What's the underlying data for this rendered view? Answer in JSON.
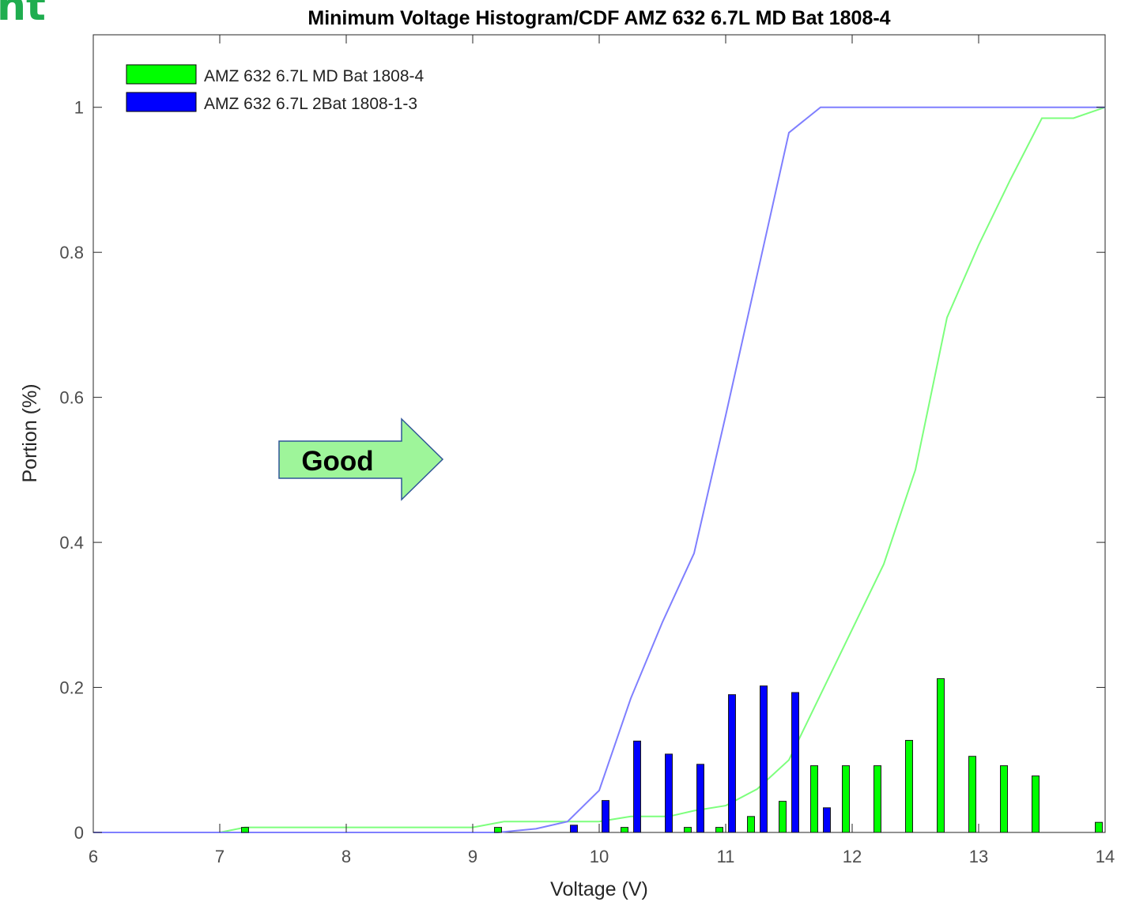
{
  "corner_text": "nt",
  "annotation": {
    "label": "Good",
    "fill": "#9ef59a",
    "stroke": "#2f5597"
  },
  "chart_data": {
    "type": "bar",
    "title": "Minimum Voltage Histogram/CDF AMZ 632 6.7L MD Bat 1808-4",
    "xlabel": "Voltage (V)",
    "ylabel": "Portion (%)",
    "xlim": [
      6,
      14
    ],
    "ylim": [
      0,
      1.1
    ],
    "xticks": [
      6,
      7,
      8,
      9,
      10,
      11,
      12,
      13,
      14
    ],
    "yticks": [
      0,
      0.2,
      0.4,
      0.6,
      0.8,
      1
    ],
    "ytick_labels": [
      "0",
      "0.2",
      "0.4",
      "0.6",
      "0.8",
      "1"
    ],
    "grid": false,
    "legend_position": "top-left",
    "series": [
      {
        "name": "AMZ 632 6.7L MD Bat 1808-4",
        "color": "#00ff00",
        "bars": [
          [
            7.2,
            0.007
          ],
          [
            9.2,
            0.007
          ],
          [
            10.2,
            0.007
          ],
          [
            10.7,
            0.007
          ],
          [
            10.95,
            0.007
          ],
          [
            11.2,
            0.022
          ],
          [
            11.45,
            0.043
          ],
          [
            11.7,
            0.092
          ],
          [
            11.95,
            0.092
          ],
          [
            12.2,
            0.092
          ],
          [
            12.45,
            0.127
          ],
          [
            12.7,
            0.212
          ],
          [
            12.95,
            0.105
          ],
          [
            13.2,
            0.092
          ],
          [
            13.45,
            0.078
          ],
          [
            13.95,
            0.014
          ]
        ],
        "cdf_color": "#7dff7d",
        "cdf": [
          [
            6.0,
            0.0
          ],
          [
            7.0,
            0.0
          ],
          [
            7.2,
            0.007
          ],
          [
            9.0,
            0.007
          ],
          [
            9.25,
            0.015
          ],
          [
            10.0,
            0.015
          ],
          [
            10.25,
            0.022
          ],
          [
            10.55,
            0.022
          ],
          [
            10.75,
            0.03
          ],
          [
            11.0,
            0.037
          ],
          [
            11.25,
            0.06
          ],
          [
            11.5,
            0.1
          ],
          [
            11.75,
            0.19
          ],
          [
            12.0,
            0.28
          ],
          [
            12.25,
            0.37
          ],
          [
            12.5,
            0.5
          ],
          [
            12.75,
            0.71
          ],
          [
            13.0,
            0.81
          ],
          [
            13.25,
            0.9
          ],
          [
            13.5,
            0.985
          ],
          [
            13.75,
            0.985
          ],
          [
            14.0,
            1.0
          ]
        ]
      },
      {
        "name": "AMZ 632 6.7L 2Bat 1808-1-3",
        "color": "#0000ff",
        "bars": [
          [
            9.8,
            0.01
          ],
          [
            10.05,
            0.044
          ],
          [
            10.3,
            0.126
          ],
          [
            10.55,
            0.108
          ],
          [
            10.8,
            0.094
          ],
          [
            11.05,
            0.19
          ],
          [
            11.3,
            0.202
          ],
          [
            11.55,
            0.193
          ],
          [
            11.8,
            0.034
          ]
        ],
        "cdf_color": "#7f7fff",
        "cdf": [
          [
            6.0,
            0.0
          ],
          [
            9.2,
            0.0
          ],
          [
            9.5,
            0.005
          ],
          [
            9.75,
            0.015
          ],
          [
            10.0,
            0.058
          ],
          [
            10.25,
            0.185
          ],
          [
            10.5,
            0.29
          ],
          [
            10.75,
            0.385
          ],
          [
            11.0,
            0.575
          ],
          [
            11.25,
            0.77
          ],
          [
            11.5,
            0.965
          ],
          [
            11.75,
            1.0
          ],
          [
            14.0,
            1.0
          ]
        ]
      }
    ]
  }
}
